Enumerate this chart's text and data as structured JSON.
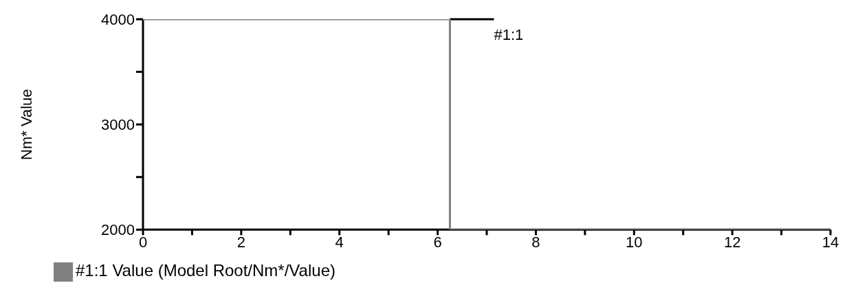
{
  "chart_data": {
    "type": "line",
    "ylabel": "Nm* Value",
    "x": [
      0,
      6.25,
      6.25,
      14
    ],
    "series": [
      {
        "name": "#1:1 Value (Model Root/Nm*/Value)",
        "color": "#808080",
        "values": [
          4000,
          4000,
          2000,
          2000
        ]
      }
    ],
    "xlim": [
      0,
      14
    ],
    "xticks": [
      0,
      {
        "value": 1,
        "label": null
      },
      2,
      {
        "value": 3,
        "label": null
      },
      4,
      {
        "value": 5,
        "label": null
      },
      6,
      {
        "value": 7,
        "label": null
      },
      8,
      {
        "value": 9,
        "label": null
      },
      10,
      {
        "value": 11,
        "label": null
      },
      12,
      {
        "value": 13,
        "label": null
      },
      14
    ],
    "ylim": [
      2000,
      4000
    ],
    "yticks": [
      2000,
      {
        "value": 2500,
        "label": null
      },
      3000,
      {
        "value": 3500,
        "label": null
      },
      4000
    ],
    "annotations": [
      {
        "text": "#1:1",
        "x": 6.25,
        "y": 4000
      }
    ],
    "grid": false,
    "legend": "bottom left",
    "marker": "none",
    "line_style": "solid"
  }
}
